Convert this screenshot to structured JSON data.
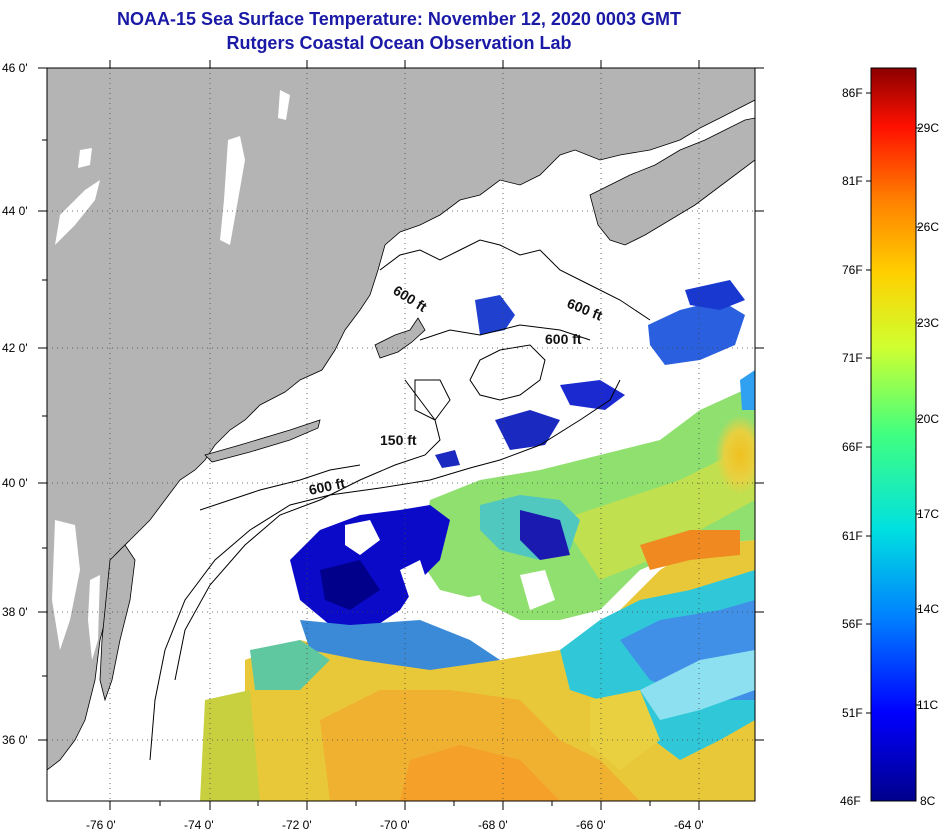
{
  "header": {
    "title": "NOAA-15 Sea Surface Temperature:  November 12, 2020 0003 GMT",
    "subtitle": "Rutgers Coastal Ocean Observation Lab"
  },
  "map": {
    "lat_labels": [
      "46 0'",
      "44 0'",
      "42 0'",
      "40 0'",
      "38 0'",
      "36 0'"
    ],
    "lon_labels": [
      "-76 0'",
      "-74 0'",
      "-72 0'",
      "-70 0'",
      "-68 0'",
      "-66 0'",
      "-64 0'"
    ],
    "contours": [
      "600 ft",
      "600 ft",
      "600 ft",
      "150 ft",
      "600 ft"
    ],
    "land_color": "#b4b4b4",
    "no_data_color": "#ffffff"
  },
  "colorbar": {
    "fahrenheit": [
      "86F",
      "81F",
      "76F",
      "71F",
      "66F",
      "61F",
      "56F",
      "51F",
      "46F"
    ],
    "celsius": [
      "29C",
      "26C",
      "23C",
      "20C",
      "17C",
      "14C",
      "11C",
      "8C"
    ],
    "min_color": "#00008b",
    "max_color": "#8b0000"
  }
}
